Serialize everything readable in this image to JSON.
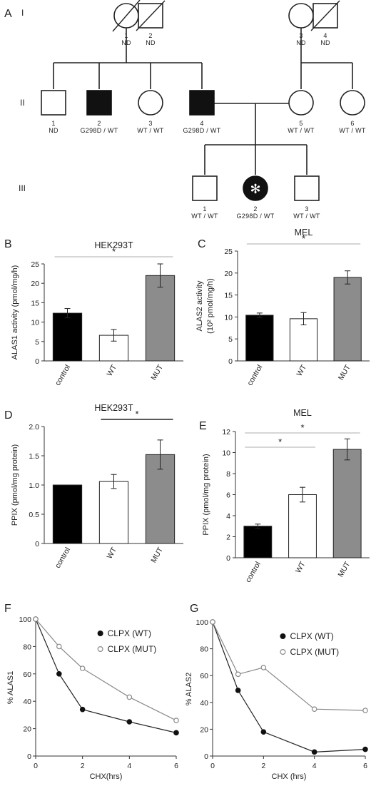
{
  "pedigree": {
    "panel_label": "A",
    "generations": [
      "I",
      "II",
      "III"
    ],
    "individuals": [
      {
        "gen": "I",
        "id": "1",
        "sex": "female",
        "status": "deceased",
        "note": "ND"
      },
      {
        "gen": "I",
        "id": "2",
        "sex": "male",
        "status": "deceased",
        "note": "ND"
      },
      {
        "gen": "I",
        "id": "3",
        "sex": "female",
        "status": "unaffected",
        "note": "ND"
      },
      {
        "gen": "I",
        "id": "4",
        "sex": "male",
        "status": "deceased",
        "note": "ND"
      },
      {
        "gen": "II",
        "id": "1",
        "sex": "male",
        "status": "unaffected",
        "note": "ND"
      },
      {
        "gen": "II",
        "id": "2",
        "sex": "male",
        "status": "affected",
        "note": "G298D / WT"
      },
      {
        "gen": "II",
        "id": "3",
        "sex": "female",
        "status": "unaffected",
        "note": "WT / WT"
      },
      {
        "gen": "II",
        "id": "4",
        "sex": "male",
        "status": "affected",
        "note": "G298D / WT"
      },
      {
        "gen": "II",
        "id": "5",
        "sex": "female",
        "status": "unaffected",
        "note": "WT / WT"
      },
      {
        "gen": "II",
        "id": "6",
        "sex": "female",
        "status": "unaffected",
        "note": "WT / WT"
      },
      {
        "gen": "III",
        "id": "1",
        "sex": "male",
        "status": "unaffected",
        "note": "WT / WT"
      },
      {
        "gen": "III",
        "id": "2",
        "sex": "female",
        "status": "proband",
        "note": "G298D / WT"
      },
      {
        "gen": "III",
        "id": "3",
        "sex": "male",
        "status": "unaffected",
        "note": "WT / WT"
      }
    ]
  },
  "chart_data": [
    {
      "panel": "B",
      "type": "bar",
      "title": "HEK293T",
      "ylabel": "ALAS1 activity (pmol/mg/h)",
      "categories": [
        "control",
        "WT",
        "MUT"
      ],
      "values": [
        12.3,
        6.6,
        22.0
      ],
      "errors": [
        1.2,
        1.5,
        3.0
      ],
      "bar_colors": [
        "#000000",
        "#ffffff",
        "#8c8c8c"
      ],
      "ylim": [
        0,
        25
      ],
      "yticks": [
        0,
        5,
        10,
        15,
        20,
        25
      ],
      "significance": [
        {
          "from": 0,
          "to": 2,
          "label": "*",
          "color": "#c8c8c8"
        }
      ]
    },
    {
      "panel": "C",
      "type": "bar",
      "title": "MEL",
      "ylabel": "ALAS2 activity",
      "ylabel2": "(10² pmol/mg/h)",
      "categories": [
        "control",
        "WT",
        "MUT"
      ],
      "values": [
        10.4,
        9.6,
        19.0
      ],
      "errors": [
        0.5,
        1.4,
        1.5
      ],
      "bar_colors": [
        "#000000",
        "#ffffff",
        "#8c8c8c"
      ],
      "ylim": [
        0,
        25
      ],
      "yticks": [
        0,
        5,
        10,
        15,
        20,
        25
      ],
      "significance": [
        {
          "from": 0,
          "to": 2,
          "label": "*",
          "color": "#c8c8c8"
        }
      ]
    },
    {
      "panel": "D",
      "type": "bar",
      "title": "HEK293T",
      "ylabel": "PPIX (pmol/mg protein)",
      "categories": [
        "control",
        "WT",
        "MUT"
      ],
      "values": [
        1.0,
        1.06,
        1.52
      ],
      "errors": [
        0.0,
        0.12,
        0.25
      ],
      "bar_colors": [
        "#000000",
        "#ffffff",
        "#8c8c8c"
      ],
      "ylim": [
        0,
        2.0
      ],
      "yticks": [
        0,
        0.5,
        1.0,
        1.5,
        2.0
      ],
      "ytick_labels": [
        "0",
        "0.5",
        "1.0",
        "1.5",
        "2.0"
      ],
      "significance": [
        {
          "from": 1,
          "to": 2,
          "label": "*",
          "color": "#222222"
        }
      ]
    },
    {
      "panel": "E",
      "type": "bar",
      "title": "MEL",
      "ylabel": "PPIX (pmol/mg protein)",
      "categories": [
        "control",
        "WT",
        "MUT"
      ],
      "values": [
        3.0,
        6.0,
        10.3
      ],
      "errors": [
        0.2,
        0.7,
        1.0
      ],
      "bar_colors": [
        "#000000",
        "#ffffff",
        "#8c8c8c"
      ],
      "ylim": [
        0,
        12
      ],
      "yticks": [
        0,
        2,
        4,
        6,
        8,
        10,
        12
      ],
      "significance": [
        {
          "from": 0,
          "to": 1,
          "label": "*",
          "color": "#c8c8c8"
        },
        {
          "from": 0,
          "to": 2,
          "label": "*",
          "color": "#c8c8c8"
        }
      ]
    },
    {
      "panel": "F",
      "type": "line",
      "xlabel": "CHX(hrs)",
      "ylabel": "% ALAS1",
      "xlim": [
        0,
        6
      ],
      "ylim": [
        0,
        100
      ],
      "xticks": [
        0,
        2,
        4,
        6
      ],
      "yticks": [
        0,
        20,
        40,
        60,
        80,
        100
      ],
      "x": [
        0,
        1,
        2,
        4,
        6
      ],
      "series": [
        {
          "name": "CLPX (WT)",
          "marker": "filled",
          "values": [
            100,
            60,
            34,
            25,
            17
          ]
        },
        {
          "name": "CLPX (MUT)",
          "marker": "open",
          "values": [
            100,
            80,
            64,
            43,
            26
          ]
        }
      ]
    },
    {
      "panel": "G",
      "type": "line",
      "xlabel": "CHX (hrs)",
      "ylabel": "% ALAS2",
      "xlim": [
        0,
        6
      ],
      "ylim": [
        0,
        100
      ],
      "xticks": [
        0,
        2,
        4,
        6
      ],
      "yticks": [
        0,
        20,
        40,
        60,
        80,
        100
      ],
      "x": [
        0,
        1,
        2,
        4,
        6
      ],
      "series": [
        {
          "name": "CLPX (WT)",
          "marker": "filled",
          "values": [
            100,
            49,
            18,
            3,
            5
          ]
        },
        {
          "name": "CLPX (MUT)",
          "marker": "open",
          "values": [
            100,
            61,
            66,
            35,
            34
          ]
        }
      ]
    }
  ]
}
